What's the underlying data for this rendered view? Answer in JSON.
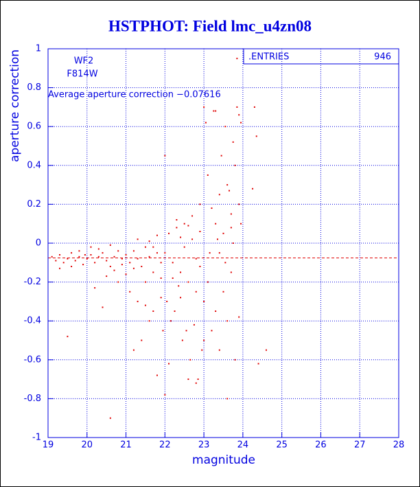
{
  "chart_data": {
    "type": "scatter",
    "title": "HSTPHOT: Field lmc_u4zn08",
    "x_label": "magnitude",
    "y_label": "aperture correction",
    "annotations": [
      "WF2",
      "F814W",
      "Average aperture correction −0.07616"
    ],
    "stats": {
      "label": ".ENTRIES",
      "value": 946
    },
    "average_line": -0.07616,
    "average_line_color": "#e00000",
    "color": "#e00000",
    "grid": true,
    "xlim": [
      19,
      28
    ],
    "xticks": [
      19,
      20,
      21,
      22,
      23,
      24,
      25,
      26,
      27,
      28
    ],
    "ylim": [
      -1,
      1
    ],
    "yticks": [
      -1,
      -0.8,
      -0.6,
      -0.4,
      -0.2,
      0,
      0.2,
      0.4,
      0.6,
      0.8,
      1
    ],
    "x": [
      19.1,
      19.2,
      19.3,
      19.4,
      19.5,
      19.6,
      19.7,
      19.8,
      19.9,
      19.95,
      19.5,
      19.3,
      19.6,
      19.8,
      20.0,
      20.1,
      20.2,
      20.3,
      20.4,
      20.5,
      20.6,
      20.7,
      20.8,
      20.9,
      20.2,
      20.4,
      20.6,
      20.5,
      20.8,
      20.3,
      20.7,
      20.9,
      20.1,
      20.6,
      21.0,
      21.1,
      21.2,
      21.3,
      21.4,
      21.5,
      21.6,
      21.7,
      21.8,
      21.9,
      21.1,
      21.3,
      21.5,
      21.7,
      21.9,
      21.2,
      21.4,
      21.6,
      21.8,
      21.95,
      21.3,
      21.6,
      21.8,
      21.9,
      21.0,
      21.5,
      21.7,
      21.2,
      22.0,
      22.1,
      22.2,
      22.3,
      22.4,
      22.5,
      22.6,
      22.7,
      22.8,
      22.9,
      22.05,
      22.15,
      22.25,
      22.35,
      22.45,
      22.55,
      22.65,
      22.75,
      22.85,
      22.95,
      22.0,
      22.1,
      22.3,
      22.5,
      22.7,
      22.9,
      22.2,
      22.4,
      22.6,
      22.8,
      22.0,
      22.6,
      22.8,
      22.4,
      22.9,
      23.0,
      23.05,
      23.1,
      23.2,
      23.3,
      23.4,
      23.5,
      23.6,
      23.7,
      23.8,
      23.9,
      23.0,
      23.1,
      23.2,
      23.3,
      23.4,
      23.5,
      23.6,
      23.7,
      23.8,
      23.9,
      23.25,
      23.3,
      23.55,
      23.75,
      23.85,
      23.9,
      23.95,
      23.45,
      23.65,
      23.15,
      23.35,
      23.55,
      23.75,
      23.95,
      23.85,
      23.6,
      23.0,
      23.4,
      23.7,
      24.3,
      24.35,
      24.25,
      24.4,
      24.6
    ],
    "y": [
      -0.07,
      -0.09,
      -0.06,
      -0.1,
      -0.08,
      -0.05,
      -0.09,
      -0.07,
      -0.11,
      -0.06,
      -0.48,
      -0.13,
      -0.12,
      -0.04,
      -0.08,
      -0.06,
      -0.1,
      -0.07,
      -0.05,
      -0.09,
      -0.12,
      -0.07,
      -0.04,
      -0.08,
      -0.23,
      -0.33,
      -0.9,
      -0.17,
      -0.2,
      -0.03,
      -0.14,
      -0.11,
      -0.02,
      -0.01,
      -0.06,
      -0.1,
      -0.04,
      -0.08,
      -0.12,
      -0.02,
      -0.07,
      -0.15,
      -0.05,
      -0.1,
      -0.25,
      -0.3,
      -0.2,
      -0.35,
      -0.28,
      -0.55,
      -0.5,
      -0.4,
      -0.68,
      -0.45,
      0.02,
      0.01,
      0.04,
      -0.18,
      -0.16,
      -0.32,
      -0.02,
      -0.13,
      -0.05,
      0.05,
      -0.1,
      0.08,
      -0.15,
      0.1,
      -0.2,
      0.02,
      -0.25,
      0.06,
      -0.3,
      -0.4,
      -0.35,
      -0.22,
      -0.5,
      -0.45,
      -0.6,
      -0.42,
      -0.7,
      -0.55,
      0.45,
      -0.62,
      0.12,
      -0.02,
      0.14,
      -0.12,
      -0.18,
      0.03,
      0.09,
      -0.08,
      -0.78,
      -0.7,
      -0.72,
      -0.28,
      0.2,
      0.7,
      0.62,
      0.35,
      0.18,
      0.1,
      0.25,
      0.05,
      0.3,
      0.15,
      0.4,
      0.2,
      -0.3,
      -0.2,
      -0.45,
      -0.35,
      -0.55,
      -0.25,
      -0.4,
      -0.15,
      -0.6,
      -0.38,
      0.68,
      0.68,
      0.6,
      0.52,
      0.7,
      0.66,
      0.62,
      0.45,
      0.27,
      -0.05,
      0.02,
      -0.1,
      0.0,
      0.1,
      0.95,
      -0.8,
      -0.5,
      -0.05,
      0.08,
      0.7,
      0.55,
      0.28,
      -0.62,
      -0.55
    ]
  }
}
